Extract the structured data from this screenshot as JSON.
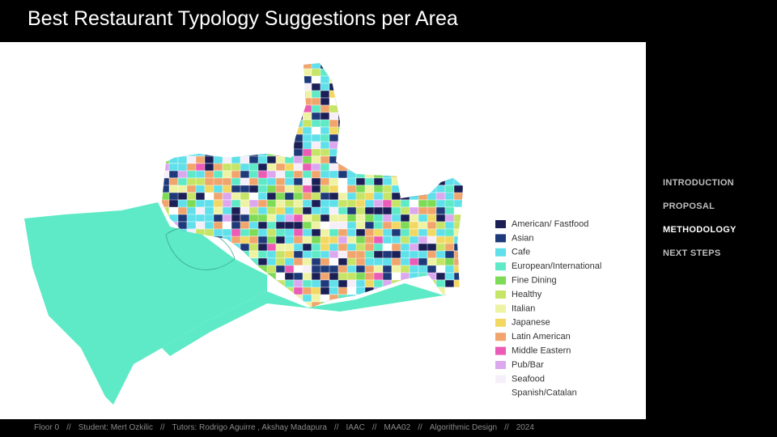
{
  "header": {
    "title": "Best Restaurant Typology Suggestions per Area"
  },
  "legend": [
    {
      "label": "American/ Fastfood",
      "color": "#1b1f55"
    },
    {
      "label": "Asian",
      "color": "#1f3a7a"
    },
    {
      "label": "Cafe",
      "color": "#5fe0ea"
    },
    {
      "label": "European/International",
      "color": "#5eeac6"
    },
    {
      "label": "Fine Dining",
      "color": "#7edb55"
    },
    {
      "label": "Healthy",
      "color": "#c6e466"
    },
    {
      "label": "Italian",
      "color": "#eef3a4"
    },
    {
      "label": "Japanese",
      "color": "#f2d862"
    },
    {
      "label": "Latin American",
      "color": "#f1a56c"
    },
    {
      "label": "Middle Eastern",
      "color": "#ea5cb6"
    },
    {
      "label": "Pub/Bar",
      "color": "#dba8f0"
    },
    {
      "label": "Seafood",
      "color": "#f6eff9"
    },
    {
      "label": "Spanish/Catalan",
      "color": "#ffffff"
    }
  ],
  "nav": {
    "items": [
      "INTRODUCTION",
      "PROPOSAL",
      "METHODOLOGY",
      "NEXT STEPS"
    ],
    "active": "METHODOLOGY"
  },
  "footer": {
    "separator": "//",
    "items": [
      "Floor 0",
      "Student: Mert Ozkilic",
      "Tutors: Rodrigo Aguirre , Akshay Madapura",
      "IAAC",
      "MAA02",
      "Algorithmic Design",
      "2024"
    ]
  }
}
